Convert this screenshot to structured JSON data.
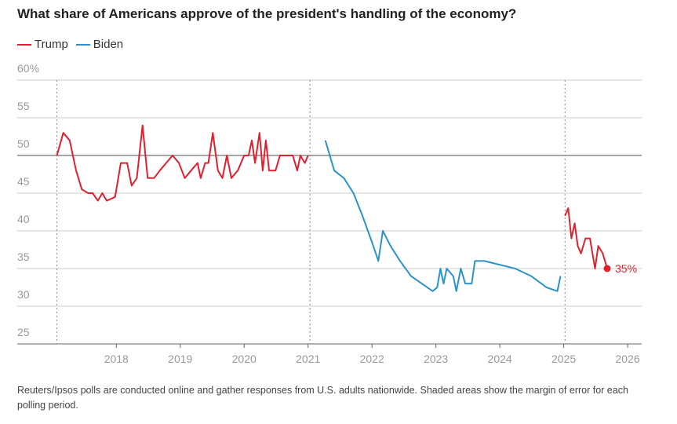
{
  "chart_data": {
    "type": "line",
    "title": "What share of Americans approve of the president's handling of the economy?",
    "footnote": "Reuters/Ipsos polls are conducted online and gather responses from U.S. adults nationwide. Shaded areas show the margin of error for each polling period.",
    "x": [
      2017.07,
      2017.17,
      2017.27,
      2017.37,
      2017.46,
      2017.56,
      2017.63,
      2017.71,
      2017.78,
      2017.85,
      2017.98,
      2018.07,
      2018.17,
      2018.24,
      2018.32,
      2018.41,
      2018.49,
      2018.59,
      2018.68,
      2018.78,
      2018.88,
      2018.98,
      2019.07,
      2019.17,
      2019.27,
      2019.32,
      2019.39,
      2019.44,
      2019.51,
      2019.59,
      2019.66,
      2019.73,
      2019.8,
      2019.9,
      2020.0,
      2020.07,
      2020.12,
      2020.17,
      2020.24,
      2020.29,
      2020.34,
      2020.39,
      2020.49,
      2020.56,
      2020.66,
      2020.76,
      2020.83,
      2020.88,
      2020.95,
      2021.0,
      2021.27,
      2021.41,
      2021.56,
      2021.71,
      2021.85,
      2022.0,
      2022.1,
      2022.17,
      2022.29,
      2022.44,
      2022.61,
      2022.78,
      2022.95,
      2023.02,
      2023.07,
      2023.12,
      2023.17,
      2023.27,
      2023.32,
      2023.39,
      2023.46,
      2023.56,
      2023.61,
      2023.76,
      2024.0,
      2024.24,
      2024.49,
      2024.73,
      2024.9,
      2024.95,
      2025.02,
      2025.07,
      2025.12,
      2025.17,
      2025.22,
      2025.27,
      2025.34,
      2025.41,
      2025.49,
      2025.54,
      2025.61,
      2025.68
    ],
    "series": [
      {
        "name": "Trump",
        "color": "#e0202e",
        "values": [
          50,
          53,
          52,
          48,
          45.5,
          45,
          45,
          44,
          45,
          44,
          44.5,
          49,
          49,
          46,
          47,
          54,
          47,
          47,
          48,
          49,
          50,
          49,
          47,
          48,
          49,
          47,
          49,
          49,
          53,
          48,
          47,
          50,
          47,
          48,
          50,
          50,
          52,
          49,
          53,
          48,
          52,
          48,
          48,
          50,
          50,
          50,
          48,
          50,
          49,
          50,
          null,
          null,
          null,
          null,
          null,
          null,
          null,
          null,
          null,
          null,
          null,
          null,
          null,
          null,
          null,
          null,
          null,
          null,
          null,
          null,
          null,
          null,
          null,
          null,
          null,
          null,
          null,
          null,
          null,
          null,
          42,
          43,
          39,
          41,
          38,
          37,
          39,
          39,
          35,
          38,
          37,
          35
        ],
        "value_labels": [
          null,
          null,
          null,
          null,
          null,
          null,
          null,
          null,
          null,
          null,
          null,
          null,
          null,
          null,
          null,
          null,
          null,
          null,
          null,
          null,
          null,
          null,
          null,
          null,
          null,
          null,
          null,
          null,
          null,
          null,
          null,
          null,
          null,
          null,
          null,
          null,
          null,
          null,
          null,
          null,
          null,
          null,
          null,
          null,
          null,
          null,
          null,
          null,
          null,
          null,
          null,
          null,
          null,
          null,
          null,
          null,
          null,
          null,
          null,
          null,
          null,
          null,
          null,
          null,
          null,
          null,
          null,
          null,
          null,
          null,
          null,
          null,
          null,
          null,
          null,
          null,
          null,
          null,
          null,
          null,
          null,
          null,
          null,
          null,
          null,
          null,
          null,
          null,
          null,
          null,
          null,
          "35%"
        ]
      },
      {
        "name": "Biden",
        "color": "#2b93c8",
        "values": [
          null,
          null,
          null,
          null,
          null,
          null,
          null,
          null,
          null,
          null,
          null,
          null,
          null,
          null,
          null,
          null,
          null,
          null,
          null,
          null,
          null,
          null,
          null,
          null,
          null,
          null,
          null,
          null,
          null,
          null,
          null,
          null,
          null,
          null,
          null,
          null,
          null,
          null,
          null,
          null,
          null,
          null,
          null,
          null,
          null,
          null,
          null,
          null,
          null,
          null,
          52,
          48,
          47,
          45,
          42,
          38.5,
          36,
          40,
          38,
          36,
          34,
          33,
          32,
          32.5,
          35,
          33,
          35,
          34,
          32,
          35,
          33,
          33,
          36,
          36,
          35.5,
          35,
          34,
          32.5,
          32,
          34,
          null,
          null,
          null,
          null,
          null,
          null,
          null,
          null,
          null,
          null,
          null,
          null
        ]
      }
    ],
    "xlim": [
      2016.45,
      2026.22
    ],
    "xticks": [
      2018,
      2019,
      2020,
      2021,
      2022,
      2023,
      2024,
      2025,
      2026
    ],
    "ylim": [
      25,
      60
    ],
    "yticks": [
      25,
      30,
      35,
      40,
      45,
      50,
      55,
      {
        "value": 60,
        "label": "60%"
      }
    ],
    "grid": true,
    "reference_line": 50,
    "vlines": [
      2017.07,
      2021.03,
      2025.02
    ]
  }
}
